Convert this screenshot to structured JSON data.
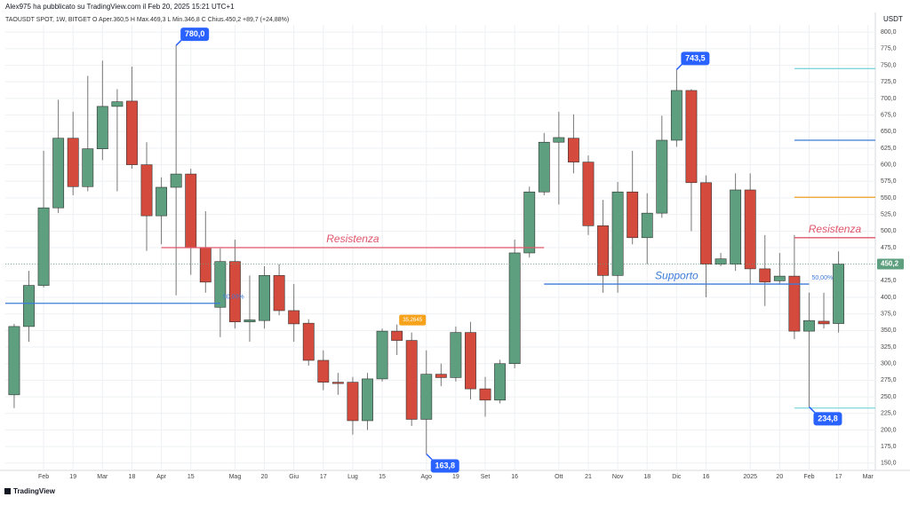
{
  "header": {
    "author_line": "Alex975 ha pubblicato su TradingView.com il Feb 20, 2025 15:21 UTC+1",
    "legend": "TAOUSDT SPOT, 1W, BITGET  O  Aper.360,5  H  Max.469,3  L  Min.346,8  C  Chius.450,2  +89,7 (+24,88%)",
    "currency": "USDT",
    "brand": "TradingView"
  },
  "chart_data": {
    "type": "candlestick",
    "up_color": "#5e9f7f",
    "down_color": "#d44a3c",
    "grid": true,
    "open": [
      253,
      356,
      418,
      535,
      640,
      567,
      624,
      688,
      696,
      600,
      523,
      566,
      586,
      475,
      385,
      454,
      363,
      365,
      433,
      380,
      361,
      305,
      272,
      272,
      214,
      277,
      349,
      335,
      216,
      284,
      279,
      347,
      262,
      245,
      300,
      467,
      559,
      634,
      640,
      604,
      508,
      433,
      559,
      490,
      527,
      637,
      712,
      573,
      450,
      450,
      562,
      443,
      425,
      432,
      349,
      364,
      360.5
    ],
    "high": [
      360,
      440,
      621,
      698,
      680,
      734,
      757,
      714,
      748,
      634,
      581,
      780,
      594,
      530,
      474,
      487,
      433,
      447,
      450,
      420,
      367,
      320,
      286,
      280,
      286,
      353,
      359,
      347,
      320,
      300,
      356,
      363,
      280,
      306,
      487,
      567,
      648,
      680,
      676,
      614,
      547,
      574,
      621,
      557,
      674,
      743.5,
      714,
      584,
      467,
      587,
      587,
      494,
      467,
      494,
      407,
      407,
      469.3
    ],
    "low": [
      233,
      333,
      415,
      527,
      554,
      560,
      607,
      560,
      594,
      470,
      480,
      403,
      434,
      407,
      340,
      353,
      333,
      353,
      373,
      333,
      297,
      260,
      253,
      193,
      200,
      273,
      313,
      206,
      163.8,
      266,
      273,
      246,
      220,
      240,
      293,
      460,
      554,
      540,
      587,
      494,
      407,
      407,
      480,
      450,
      520,
      627,
      500,
      400,
      447,
      440,
      420,
      387,
      420,
      337,
      234.8,
      353,
      346.8
    ],
    "close": [
      356,
      418,
      535,
      640,
      567,
      624,
      688,
      695,
      600,
      523,
      566,
      586,
      475,
      423,
      454,
      363,
      366,
      433,
      380,
      360,
      305,
      272,
      270,
      214,
      277,
      349,
      335,
      216,
      284,
      279,
      347,
      262,
      245,
      300,
      467,
      559,
      634,
      641,
      604,
      508,
      433,
      559,
      490,
      527,
      637,
      712,
      573,
      450,
      458,
      562,
      443,
      423,
      432,
      349,
      365,
      360,
      450.2
    ],
    "xlim": [
      -0.6,
      58.5
    ],
    "xticks": [
      {
        "value": 2,
        "label": "Feb"
      },
      {
        "value": 4,
        "label": "19"
      },
      {
        "value": 6,
        "label": "Mar"
      },
      {
        "value": 8,
        "label": "18"
      },
      {
        "value": 10,
        "label": "Apr"
      },
      {
        "value": 12,
        "label": "15"
      },
      {
        "value": 15,
        "label": "Mag"
      },
      {
        "value": 17,
        "label": "20"
      },
      {
        "value": 19,
        "label": "Giu"
      },
      {
        "value": 21,
        "label": "17"
      },
      {
        "value": 23,
        "label": "Lug"
      },
      {
        "value": 25,
        "label": "15"
      },
      {
        "value": 28,
        "label": "Ago"
      },
      {
        "value": 30,
        "label": "19"
      },
      {
        "value": 32,
        "label": "Set"
      },
      {
        "value": 34,
        "label": "16"
      },
      {
        "value": 37,
        "label": "Ott"
      },
      {
        "value": 39,
        "label": "21"
      },
      {
        "value": 41,
        "label": "Nov"
      },
      {
        "value": 43,
        "label": "18"
      },
      {
        "value": 45,
        "label": "Dic"
      },
      {
        "value": 47,
        "label": "16"
      },
      {
        "value": 50,
        "label": "2025"
      },
      {
        "value": 52,
        "label": "20"
      },
      {
        "value": 54,
        "label": "Feb"
      },
      {
        "value": 56,
        "label": "17"
      },
      {
        "value": 58,
        "label": "Mar"
      }
    ],
    "ylim": [
      139,
      811
    ],
    "yticks": [
      {
        "value": 150,
        "label": "150,0"
      },
      {
        "value": 175,
        "label": "175,0"
      },
      {
        "value": 200,
        "label": "200,0"
      },
      {
        "value": 225,
        "label": "225,0"
      },
      {
        "value": 250,
        "label": "250,0"
      },
      {
        "value": 275,
        "label": "275,0"
      },
      {
        "value": 300,
        "label": "300,0"
      },
      {
        "value": 325,
        "label": "325,0"
      },
      {
        "value": 350,
        "label": "350,0"
      },
      {
        "value": 375,
        "label": "375,0"
      },
      {
        "value": 400,
        "label": "400,0"
      },
      {
        "value": 425,
        "label": "425,0"
      },
      {
        "value": 450,
        "label": "450,0"
      },
      {
        "value": 475,
        "label": "475,0"
      },
      {
        "value": 500,
        "label": "500,0"
      },
      {
        "value": 525,
        "label": "525,0"
      },
      {
        "value": 550,
        "label": "550,0"
      },
      {
        "value": 575,
        "label": "575,0"
      },
      {
        "value": 600,
        "label": "600,0"
      },
      {
        "value": 625,
        "label": "625,0"
      },
      {
        "value": 650,
        "label": "650,0"
      },
      {
        "value": 675,
        "label": "675,0"
      },
      {
        "value": 700,
        "label": "700,0"
      },
      {
        "value": 725,
        "label": "725,0"
      },
      {
        "value": 750,
        "label": "750,0"
      },
      {
        "value": 775,
        "label": "775,0"
      },
      {
        "value": 800,
        "label": "800,0"
      }
    ],
    "last_price": {
      "value": 450.2,
      "label": "450,2"
    },
    "callouts": [
      {
        "x": 11,
        "value": 780,
        "label": "780,0"
      },
      {
        "x": 45,
        "value": 743.5,
        "label": "743,5"
      },
      {
        "x": 28,
        "value": 163.8,
        "label": "163,8"
      },
      {
        "x": 54,
        "value": 234.8,
        "label": "234,8"
      }
    ],
    "tag": {
      "x": 27,
      "label": "35,2645",
      "color": "#f7a21b"
    },
    "levels": [
      {
        "value": 391,
        "x": [
          -0.6,
          14
        ],
        "color": "#3d7bd9",
        "note": "50,00%"
      },
      {
        "value": 475,
        "x": [
          10,
          36
        ],
        "color": "#e0566b",
        "label": "Resistenza"
      },
      {
        "value": 420,
        "x": [
          36,
          54
        ],
        "color": "#3d7bd9",
        "label": "Supporto",
        "note": "50,00%"
      },
      {
        "value": 490,
        "x": [
          53,
          58.5
        ],
        "color": "#e0566b",
        "label": "Resistenza"
      },
      {
        "value": 551,
        "x": [
          53,
          58.5
        ],
        "color": "#f0a020"
      },
      {
        "value": 637,
        "x": [
          53,
          58.5
        ],
        "color": "#3d7bd9"
      },
      {
        "value": 745,
        "x": [
          53,
          58.5
        ],
        "color": "#7fd6dc"
      },
      {
        "value": 233,
        "x": [
          53,
          58.5
        ],
        "color": "#7fd6dc"
      }
    ]
  }
}
